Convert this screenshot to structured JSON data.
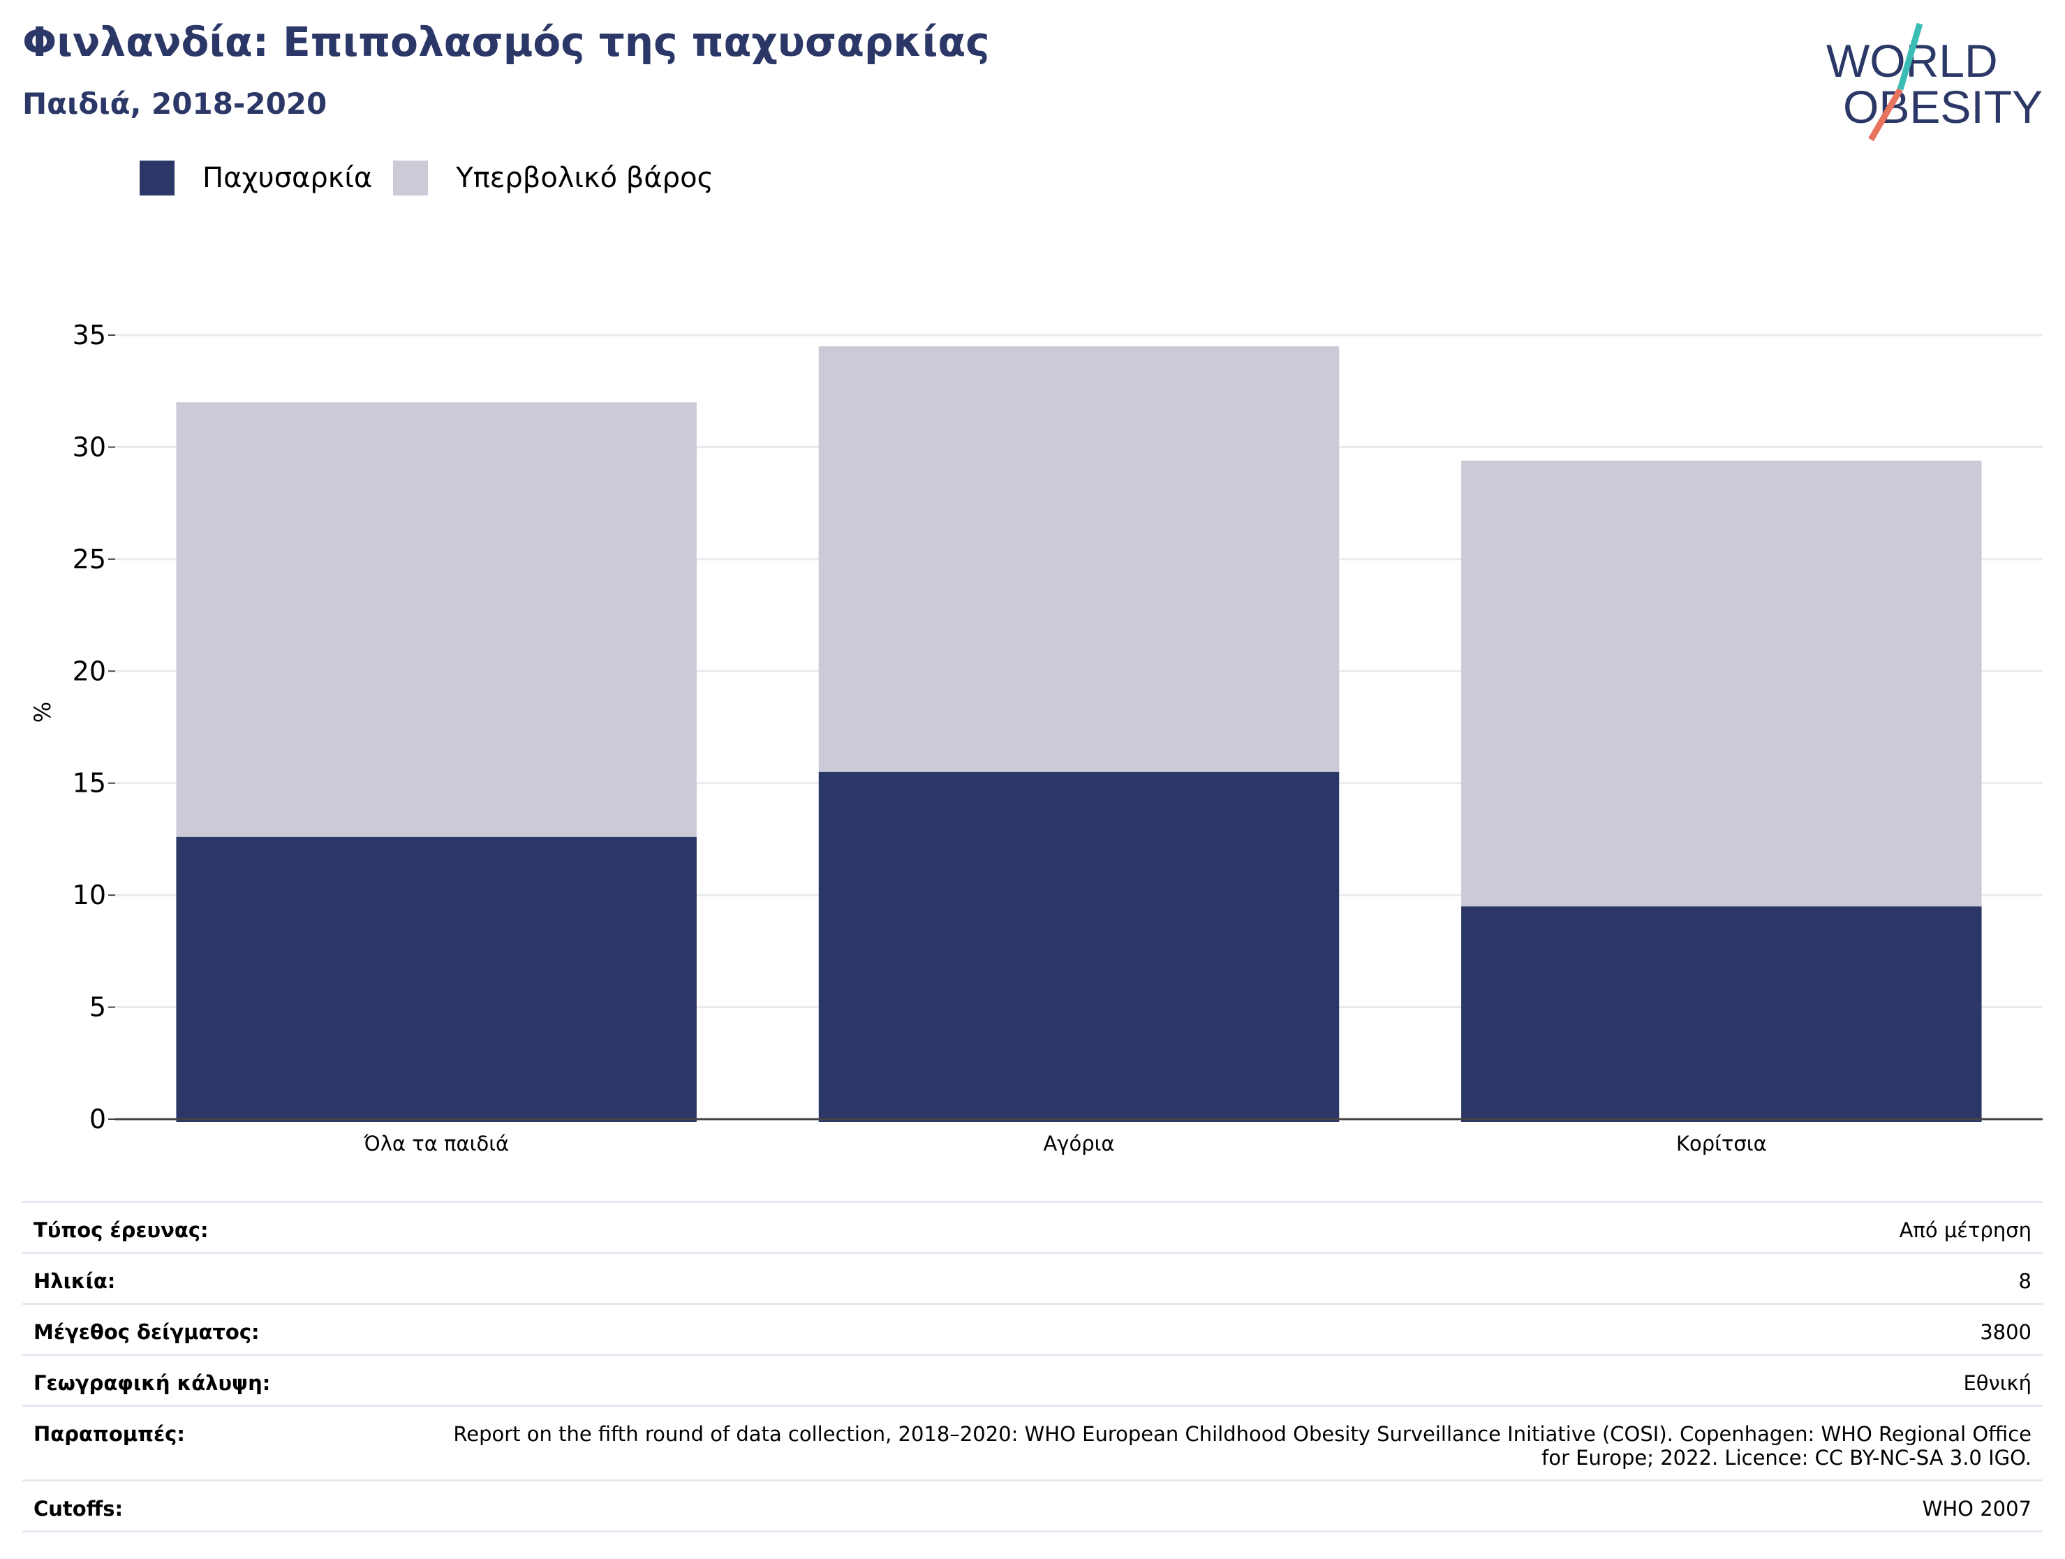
{
  "title": "Φινλανδία: Επιπολασμός της παχυσαρκίας",
  "subtitle": "Παιδιά, 2018-2020",
  "logo": {
    "line1": "WORLD",
    "line2": "OBESITY"
  },
  "colors": {
    "obesity": "#2b3766",
    "overweight": "#cacbd7",
    "title": "#2b3766",
    "grid": "#e8eaf0"
  },
  "chart_data": {
    "type": "bar",
    "stacked": true,
    "categories": [
      "Όλα τα παιδιά",
      "Αγόρια",
      "Κορίτσια"
    ],
    "series": [
      {
        "name": "Παχυσαρκία",
        "values": [
          12.6,
          15.5,
          9.5
        ]
      },
      {
        "name": "Υπερβολικό βάρος",
        "values": [
          19.4,
          19.0,
          19.9
        ]
      }
    ],
    "ylabel": "%",
    "ylim": [
      0,
      35
    ],
    "yticks": [
      0,
      5,
      10,
      15,
      20,
      25,
      30,
      35
    ],
    "grid": true,
    "legend": "top-left"
  },
  "info": [
    {
      "label": "Τύπος έρευνας:",
      "value": "Από μέτρηση"
    },
    {
      "label": "Ηλικία:",
      "value": "8"
    },
    {
      "label": "Μέγεθος δείγματος:",
      "value": "3800"
    },
    {
      "label": "Γεωγραφική κάλυψη:",
      "value": "Εθνική"
    },
    {
      "label": "Παραπομπές:",
      "value": "Report on the fifth round of data collection, 2018–2020: WHO European Childhood Obesity Surveillance Initiative (COSI). Copenhagen: WHO Regional Office for Europe; 2022. Licence: CC BY-NC-SA 3.0 IGO."
    },
    {
      "label": "Cutoffs:",
      "value": "WHO 2007"
    }
  ]
}
